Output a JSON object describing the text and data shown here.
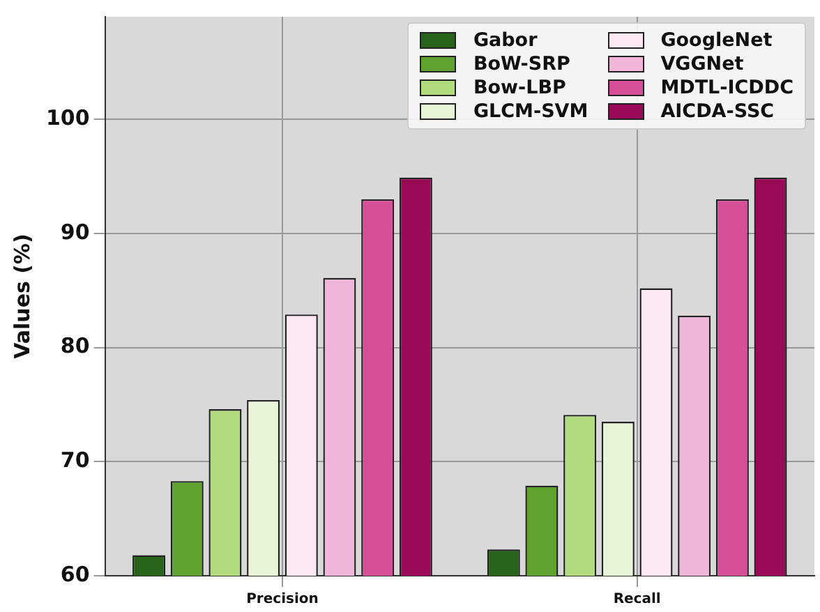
{
  "chart_data": {
    "type": "bar",
    "ylabel": "Values (%)",
    "categories": [
      "Precision",
      "Recall"
    ],
    "series": [
      {
        "name": "Gabor",
        "color": "#276419",
        "values": [
          61.8,
          62.3
        ]
      },
      {
        "name": "BoW-SRP",
        "color": "#5fa22f",
        "values": [
          68.3,
          67.9
        ]
      },
      {
        "name": "Bow-LBP",
        "color": "#b1dc7e",
        "values": [
          74.6,
          74.1
        ]
      },
      {
        "name": "GLCM-SVM",
        "color": "#e8f5d7",
        "values": [
          75.4,
          73.5
        ]
      },
      {
        "name": "GoogleNet",
        "color": "#fce7f2",
        "values": [
          82.9,
          85.2
        ]
      },
      {
        "name": "VGGNet",
        "color": "#f1b5da",
        "values": [
          86.1,
          82.8
        ]
      },
      {
        "name": "MDTL-ICDDC",
        "color": "#d54f99",
        "values": [
          93.0,
          93.0
        ]
      },
      {
        "name": "AICDA-SSC",
        "color": "#980957",
        "values": [
          94.9,
          94.9
        ]
      }
    ],
    "ylim": [
      60,
      109
    ],
    "yticks": [
      60,
      70,
      80,
      90,
      100
    ],
    "grid": true,
    "legend": "top right"
  }
}
